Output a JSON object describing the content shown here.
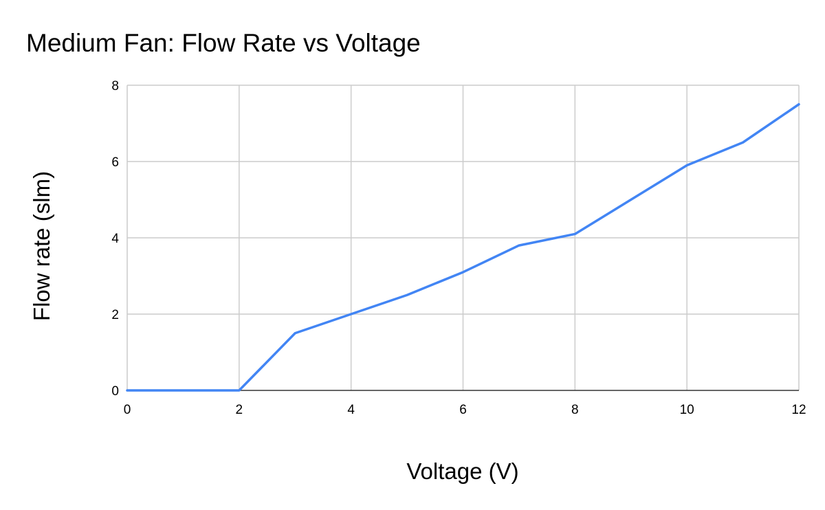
{
  "chart_data": {
    "type": "line",
    "title": "Medium Fan: Flow Rate vs Voltage",
    "xlabel": "Voltage (V)",
    "ylabel": "Flow rate (slm)",
    "xlim": [
      0,
      12
    ],
    "ylim": [
      0,
      8
    ],
    "xticks": [
      0,
      2,
      4,
      6,
      8,
      10,
      12
    ],
    "yticks": [
      0,
      2,
      4,
      6,
      8
    ],
    "grid": true,
    "legend": "none",
    "colors": {
      "series": "#4285f4",
      "grid": "#cccccc"
    },
    "series": [
      {
        "x": [
          0,
          1,
          2,
          3,
          4,
          5,
          6,
          7,
          8,
          9,
          10,
          11,
          12
        ],
        "values": [
          0,
          0,
          0,
          1.5,
          2.0,
          2.5,
          3.1,
          3.8,
          4.1,
          5.0,
          5.9,
          6.5,
          7.5
        ]
      }
    ]
  }
}
